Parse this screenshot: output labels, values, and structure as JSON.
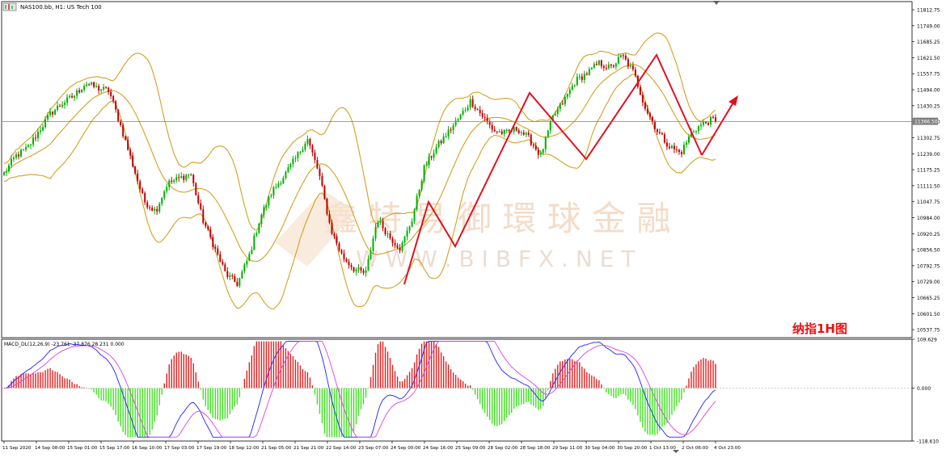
{
  "chart_title": "NAS100.bb, H1:  US Tech 100",
  "indicator_title": "MACD_DL(12,26,9) -23.761 -37.876 28.231 0.000",
  "annotation": "纳指1H图",
  "watermark_cn": "鑫 特 易 御 環 球 金 融",
  "watermark_en": "W W W . B I B F X . N E T",
  "current_price_label": "11366.50",
  "colors": {
    "bull": "#00b000",
    "bear": "#c00000",
    "bands": "#d4a020",
    "macd_pos": "#e02020",
    "macd_neg": "#40e020",
    "macd_line": "#2020ff",
    "signal_line": "#e040e0",
    "arrow": "#e01020",
    "annotation": "#ee1010"
  },
  "chart_data": [
    {
      "type": "candlestick",
      "symbol": "NAS100.bb",
      "timeframe": "H1",
      "y_ticks": [
        "11812.75",
        "11749.00",
        "11685.25",
        "11621.50",
        "11557.75",
        "11494.00",
        "11430.25",
        "11366.50",
        "11302.75",
        "11239.00",
        "11175.25",
        "11111.50",
        "11047.75",
        "10984.00",
        "10920.25",
        "10856.50",
        "10792.75",
        "10729.00",
        "10665.25",
        "10601.50",
        "10537.75"
      ],
      "ylim": [
        10506,
        11845
      ],
      "x_ticks": [
        "11 Sep 2020",
        "14 Sep 08:00",
        "15 Sep 01:00",
        "15 Sep 17:00",
        "16 Sep 10:00",
        "17 Sep 03:00",
        "17 Sep 19:00",
        "18 Sep 12:00",
        "21 Sep 05:00",
        "21 Sep 21:00",
        "22 Sep 14:00",
        "23 Sep 07:00",
        "24 Sep 00:00",
        "24 Sep 16:00",
        "25 Sep 09:00",
        "28 Sep 02:00",
        "28 Sep 18:00",
        "29 Sep 11:00",
        "30 Sep 04:00",
        "30 Sep 20:00",
        "1 Oct 13:00",
        "2 Oct 06:00",
        "4 Oct 23:00"
      ],
      "price_path": [
        11160,
        11230,
        11260,
        11330,
        11400,
        11440,
        11470,
        11520,
        11500,
        11490,
        11350,
        11200,
        11050,
        11010,
        11120,
        11140,
        11160,
        10980,
        10870,
        10760,
        10720,
        10830,
        10990,
        11090,
        11150,
        11220,
        11300,
        11160,
        10940,
        10830,
        10780,
        10760,
        10980,
        10910,
        10860,
        10980,
        11180,
        11260,
        11320,
        11380,
        11450,
        11390,
        11330,
        11320,
        11340,
        11300,
        11230,
        11380,
        11450,
        11530,
        11560,
        11600,
        11580,
        11630,
        11560,
        11420,
        11330,
        11270,
        11240,
        11330,
        11360,
        11380
      ],
      "current_price": 11366.5,
      "series": [
        {
          "name": "Bollinger Bands (upper / middle / lower)"
        }
      ]
    },
    {
      "type": "histogram+line",
      "indicator": "MACD_DL(12,26,9)",
      "values": {
        "main": -23.761,
        "signal": -37.876,
        "osma": 28.231,
        "zero": 0.0
      },
      "y_ticks": [
        "109.629",
        "0.000",
        "-118.610"
      ],
      "ylim": [
        -118.61,
        109.629
      ]
    }
  ]
}
